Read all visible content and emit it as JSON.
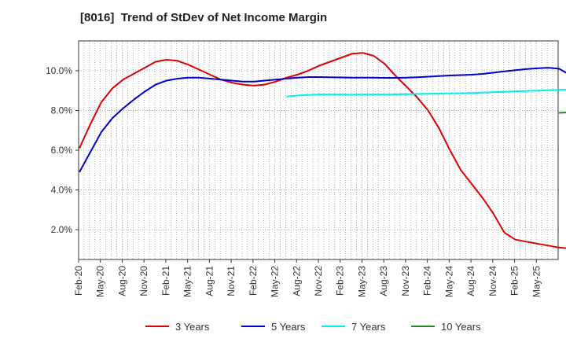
{
  "chart_data": {
    "type": "line",
    "title": "[8016]  Trend of StDev of Net Income Margin",
    "xlabel": "",
    "ylabel": "",
    "grid": true,
    "legend_position": "bottom",
    "x_ticks": [
      "Feb-20",
      "May-20",
      "Aug-20",
      "Nov-20",
      "Feb-21",
      "May-21",
      "Aug-21",
      "Nov-21",
      "Feb-22",
      "May-22",
      "Aug-22",
      "Nov-22",
      "Feb-23",
      "May-23",
      "Aug-23",
      "Nov-23",
      "Feb-24",
      "May-24",
      "Aug-24",
      "Nov-24",
      "Feb-25",
      "May-25"
    ],
    "y_ticks": [
      "2.0%",
      "4.0%",
      "6.0%",
      "8.0%",
      "10.0%"
    ],
    "y_tick_values": [
      2,
      4,
      6,
      8,
      10
    ],
    "ylim": [
      0.5,
      11.5
    ],
    "series": [
      {
        "name": "3 Years",
        "color": "#dd0000",
        "values": [
          6.1,
          7.3,
          8.4,
          9.1,
          9.55,
          9.85,
          10.15,
          10.45,
          10.55,
          10.5,
          10.3,
          10.05,
          9.8,
          9.55,
          9.4,
          9.3,
          9.25,
          9.3,
          9.45,
          9.65,
          9.8,
          10.0,
          10.25,
          10.45,
          10.65,
          10.85,
          10.9,
          10.75,
          10.35,
          9.75,
          9.2,
          8.65,
          8.0,
          7.1,
          6.0,
          5.0,
          4.3,
          3.6,
          2.8,
          1.85,
          1.5,
          1.4,
          1.3,
          1.2,
          1.1,
          1.05
        ]
      },
      {
        "name": "5 Years",
        "color": "#0000cc",
        "values": [
          4.9,
          5.9,
          6.9,
          7.6,
          8.1,
          8.55,
          8.95,
          9.3,
          9.5,
          9.6,
          9.65,
          9.65,
          9.6,
          9.55,
          9.5,
          9.45,
          9.45,
          9.5,
          9.55,
          9.6,
          9.65,
          9.68,
          9.68,
          9.67,
          9.66,
          9.65,
          9.65,
          9.65,
          9.64,
          9.64,
          9.65,
          9.67,
          9.7,
          9.73,
          9.76,
          9.78,
          9.8,
          9.84,
          9.9,
          9.97,
          10.03,
          10.08,
          10.12,
          10.15,
          10.1,
          9.8
        ]
      },
      {
        "name": "7 Years",
        "color": "#00eeee",
        "values": [
          null,
          null,
          null,
          null,
          null,
          null,
          null,
          null,
          null,
          null,
          null,
          null,
          null,
          null,
          null,
          null,
          null,
          null,
          null,
          8.7,
          8.75,
          8.78,
          8.8,
          8.8,
          8.8,
          8.79,
          8.8,
          8.8,
          8.8,
          8.81,
          8.82,
          8.83,
          8.84,
          8.85,
          8.86,
          8.87,
          8.88,
          8.9,
          8.92,
          8.94,
          8.96,
          8.98,
          9.0,
          9.02,
          9.04,
          9.05
        ]
      },
      {
        "name": "10 Years",
        "color": "#228822",
        "values": [
          null,
          null,
          null,
          null,
          null,
          null,
          null,
          null,
          null,
          null,
          null,
          null,
          null,
          null,
          null,
          null,
          null,
          null,
          null,
          null,
          null,
          null,
          null,
          null,
          null,
          null,
          null,
          null,
          null,
          null,
          null,
          null,
          null,
          null,
          null,
          null,
          null,
          null,
          null,
          null,
          null,
          null,
          null,
          null,
          7.88,
          7.9
        ]
      }
    ]
  }
}
